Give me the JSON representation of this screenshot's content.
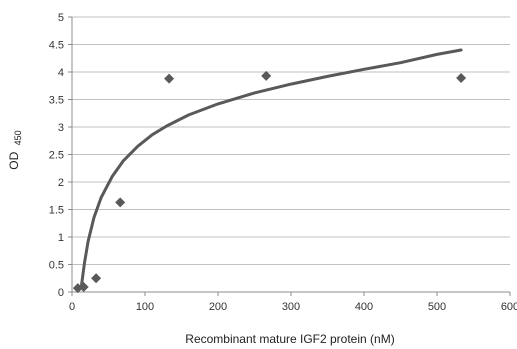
{
  "chart_data": {
    "type": "scatter",
    "xlabel": "Recombinant mature IGF2 protein (nM)",
    "ylabel": "OD",
    "ylabel_subscript": "450",
    "xlim": [
      0,
      600
    ],
    "ylim": [
      0,
      5
    ],
    "x_ticks": [
      0,
      100,
      200,
      300,
      400,
      500,
      600
    ],
    "y_ticks": [
      0,
      0.5,
      1,
      1.5,
      2,
      2.5,
      3,
      3.5,
      4,
      4.5,
      5
    ],
    "y_tick_labels": [
      "0",
      "0.5",
      "1",
      "1.5",
      "2",
      "2.5",
      "3",
      "3.5",
      "4",
      "4.5",
      "5"
    ],
    "grid": "horizontal",
    "points": [
      {
        "x": 8,
        "y": 0.07
      },
      {
        "x": 16,
        "y": 0.09
      },
      {
        "x": 33,
        "y": 0.25
      },
      {
        "x": 66,
        "y": 1.63
      },
      {
        "x": 133,
        "y": 3.88
      },
      {
        "x": 266,
        "y": 3.93
      },
      {
        "x": 533,
        "y": 3.89
      }
    ],
    "trendline": {
      "type": "logarithmic",
      "x": [
        13,
        17,
        22,
        30,
        40,
        55,
        70,
        90,
        110,
        130,
        160,
        200,
        250,
        300,
        350,
        400,
        450,
        500,
        533
      ],
      "y": [
        0.12,
        0.52,
        0.92,
        1.35,
        1.72,
        2.1,
        2.38,
        2.65,
        2.86,
        3.02,
        3.22,
        3.42,
        3.62,
        3.78,
        3.92,
        4.05,
        4.17,
        4.32,
        4.4
      ]
    },
    "colors": {
      "marker": "#595959",
      "trendline": "#595959",
      "grid": "#c0c0c0",
      "axis": "#8c8c8c"
    }
  }
}
